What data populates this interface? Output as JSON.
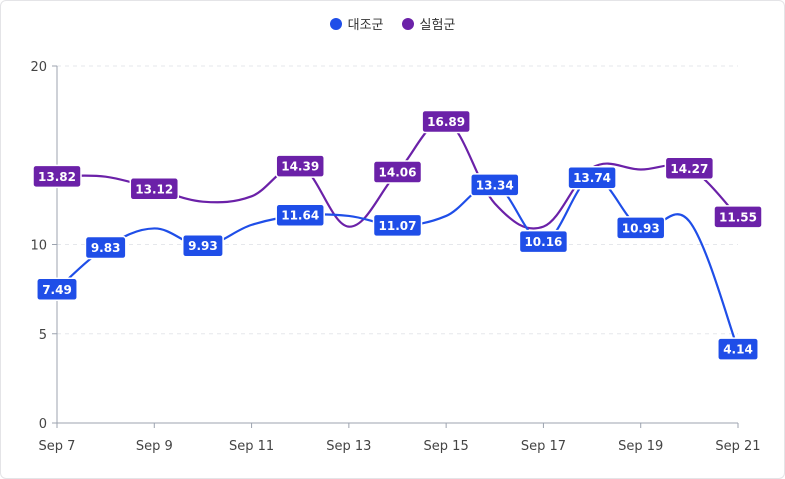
{
  "chart_data": {
    "type": "line",
    "categories": [
      "Sep 7",
      "Sep 8",
      "Sep 9",
      "Sep 10",
      "Sep 11",
      "Sep 12",
      "Sep 13",
      "Sep 14",
      "Sep 15",
      "Sep 16",
      "Sep 17",
      "Sep 18",
      "Sep 19",
      "Sep 20",
      "Sep 21"
    ],
    "x_tick_labels": [
      "Sep 7",
      "Sep 9",
      "Sep 11",
      "Sep 13",
      "Sep 15",
      "Sep 17",
      "Sep 19",
      "Sep 21"
    ],
    "y_ticks": [
      0,
      5,
      10,
      20
    ],
    "ylim": [
      0,
      20
    ],
    "grid": "horizontal dashed",
    "legend_position": "top-center",
    "series": [
      {
        "name": "대조군",
        "color": "#1f4ee8",
        "values": [
          7.49,
          9.83,
          10.9,
          9.93,
          11.1,
          11.64,
          11.6,
          11.07,
          11.6,
          13.34,
          10.16,
          13.74,
          10.93,
          11.3,
          4.14
        ],
        "labeled_points": [
          0,
          1,
          3,
          5,
          7,
          9,
          10,
          11,
          12,
          14
        ]
      },
      {
        "name": "실험군",
        "color": "#6b21a8",
        "values": [
          13.82,
          13.8,
          13.12,
          12.4,
          12.7,
          14.39,
          11.0,
          14.06,
          16.89,
          12.3,
          11.0,
          14.3,
          14.2,
          14.27,
          11.55
        ],
        "labeled_points": [
          0,
          2,
          5,
          7,
          8,
          13,
          14
        ]
      }
    ],
    "data_labels": {
      "대조군": [
        "7.49",
        "9.83",
        "9.93",
        "11.64",
        "11.07",
        "13.34",
        "10.16",
        "13.74",
        "10.93",
        "4.14"
      ],
      "실험군": [
        "13.82",
        "13.12",
        "14.39",
        "14.06",
        "16.89",
        "14.27",
        "11.55"
      ]
    }
  }
}
